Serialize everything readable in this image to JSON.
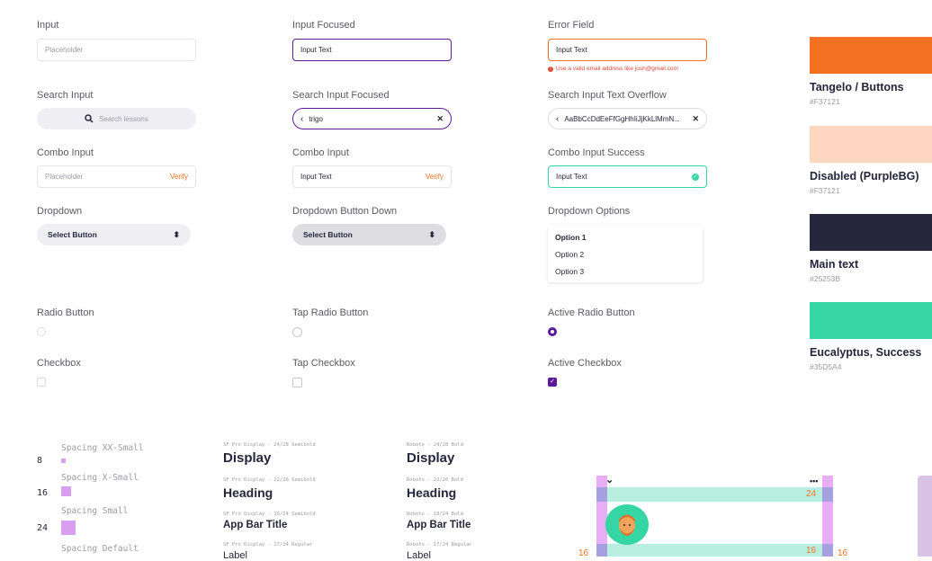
{
  "col1": {
    "input_label": "Input",
    "input_placeholder": "Placeholder",
    "search_label": "Search Input",
    "search_placeholder": "Search lessons",
    "combo_label": "Combo Input",
    "combo_placeholder": "Placeholder",
    "combo_action": "Verify",
    "dropdown_label": "Dropdown",
    "dropdown_value": "Select Button",
    "radio_label": "Radio Button",
    "checkbox_label": "Checkbox"
  },
  "col2": {
    "input_label": "Input Focused",
    "input_value": "Input Text",
    "search_label": "Search Input Focused",
    "search_value": "trigo",
    "combo_label": "Combo Input",
    "combo_value": "Input Text",
    "combo_action": "Verify",
    "dropdown_label": "Dropdown Button Down",
    "dropdown_value": "Select Button",
    "radio_label": "Tap Radio Button",
    "checkbox_label": "Tap Checkbox"
  },
  "col3": {
    "input_label": "Error Field",
    "input_value": "Input Text",
    "error_message": "Use a valid email address like josh@gmail.com",
    "search_label": "Search Input Text Overflow",
    "search_value": "AaBbCcDdEeFfGgHhIiJjKkLlMmN...",
    "combo_label": "Combo Input Success",
    "combo_value": "Input Text",
    "dropdown_label": "Dropdown Options",
    "options": [
      "Option 1",
      "Option 2",
      "Option 3"
    ],
    "radio_label": "Active Radio Button",
    "checkbox_label": "Active Checkbox"
  },
  "colors": [
    {
      "name": "Tangelo / Buttons",
      "hex": "#F37121",
      "swatch": "#F37121"
    },
    {
      "name": "Disabled (PurpleBG)",
      "hex": "#F37121",
      "swatch": "#FFD6BF"
    },
    {
      "name": "Main text",
      "hex": "#25253B",
      "swatch": "#25253B"
    },
    {
      "name": "Eucalyptus, Success",
      "hex": "#35D5A4",
      "swatch": "#35D5A4"
    }
  ],
  "spacing": [
    {
      "label": "Spacing XX-Small",
      "value": "8"
    },
    {
      "label": "Spacing X-Small",
      "value": "16"
    },
    {
      "label": "Spacing Small",
      "value": "24"
    },
    {
      "label": "Spacing Default",
      "value": ""
    }
  ],
  "type_sf": [
    {
      "spec": "SF Pro Display - 24/28 Semibold",
      "text": "Display"
    },
    {
      "spec": "SF Pro Display - 22/26 Semibold",
      "text": "Heading"
    },
    {
      "spec": "SF Pro Display - 16/24 Semibold",
      "text": "App Bar Title"
    },
    {
      "spec": "SF Pro Display - 17/24 Regular",
      "text": "Label"
    }
  ],
  "type_roboto": [
    {
      "spec": "Roboto - 24/28 Bold",
      "text": "Display"
    },
    {
      "spec": "Roboto - 22/26 Bold",
      "text": "Heading"
    },
    {
      "spec": "Roboto - 18/24 Bold",
      "text": "App Bar Title"
    },
    {
      "spec": "Roboto - 17/24 Regular",
      "text": "Label"
    }
  ],
  "measure": {
    "top": "24",
    "left": "16",
    "right_inner": "16",
    "right_outer": "16"
  },
  "icons": {
    "search": "magnifier-icon",
    "back": "chevron-left-icon",
    "clear": "clear-x-icon",
    "error": "error-icon",
    "success": "check-circle-icon",
    "updown": "chevron-updown-icon",
    "more": "more-dots-icon"
  }
}
